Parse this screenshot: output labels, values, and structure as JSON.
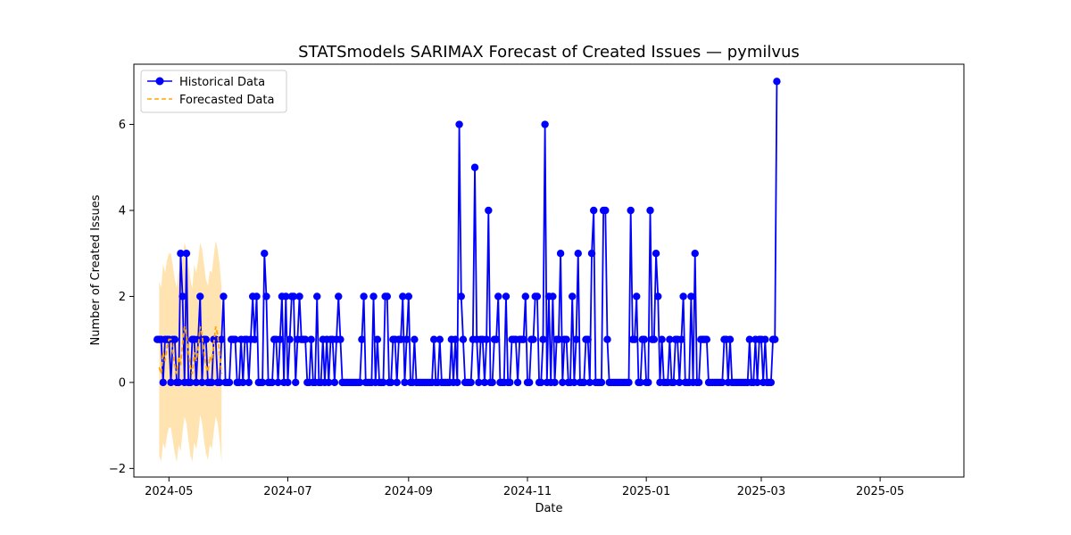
{
  "chart_data": {
    "type": "line",
    "title": "STATSmodels SARIMAX Forecast of Created Issues — pymilvus",
    "xlabel": "Date",
    "ylabel": "Number of Created Issues",
    "x_range": [
      "2024-04-13",
      "2025-06-13"
    ],
    "ylim": [
      -2.2,
      7.4
    ],
    "x_ticks": [
      "2024-05-01",
      "2024-07-01",
      "2024-09-01",
      "2024-11-01",
      "2025-01-01",
      "2025-03-01",
      "2025-05-01"
    ],
    "x_tick_labels": [
      "2024-05",
      "2024-07",
      "2024-09",
      "2024-11",
      "2025-01",
      "2025-03",
      "2025-05"
    ],
    "y_ticks": [
      -2,
      0,
      2,
      4,
      6
    ],
    "y_tick_labels": [
      "−2",
      "0",
      "2",
      "4",
      "6"
    ],
    "grid": false,
    "legend_position": "top-left",
    "colors": {
      "historical": "#0000ff",
      "forecast": "#ffa500",
      "confidence": "#ffa500"
    },
    "legend": {
      "historical": "Historical Data",
      "forecast": "Forecasted Data"
    },
    "historical": {
      "start_date": "2024-04-25",
      "values": [
        1,
        1,
        1,
        0,
        1,
        1,
        1,
        0,
        1,
        1,
        0,
        0,
        3,
        2,
        0,
        3,
        0,
        0,
        1,
        1,
        0,
        1,
        2,
        0,
        1,
        1,
        0,
        0,
        0,
        1,
        1,
        0,
        0,
        1,
        2,
        0,
        0,
        0,
        1,
        1,
        1,
        0,
        0,
        1,
        0,
        1,
        1,
        0,
        1,
        2,
        1,
        2,
        0,
        0,
        0,
        3,
        2,
        0,
        0,
        0,
        1,
        1,
        0,
        1,
        2,
        0,
        2,
        0,
        1,
        2,
        2,
        0,
        1,
        2,
        1,
        1,
        1,
        0,
        0,
        1,
        0,
        0,
        2,
        0,
        0,
        1,
        0,
        1,
        0,
        1,
        1,
        0,
        1,
        2,
        1,
        0,
        0,
        0,
        0,
        0,
        0,
        0,
        0,
        0,
        0,
        1,
        2,
        0,
        0,
        0,
        0,
        2,
        0,
        1,
        0,
        0,
        0,
        2,
        2,
        0,
        0,
        1,
        1,
        0,
        1,
        1,
        2,
        0,
        1,
        2,
        0,
        0,
        1,
        0,
        0,
        0,
        0,
        0,
        0,
        0,
        0,
        0,
        1,
        0,
        0,
        1,
        0,
        0,
        0,
        0,
        0,
        1,
        0,
        1,
        0,
        6,
        2,
        1,
        0,
        0,
        0,
        0,
        1,
        5,
        1,
        0,
        1,
        1,
        0,
        1,
        4,
        0,
        0,
        1,
        1,
        2,
        0,
        0,
        0,
        2,
        0,
        0,
        1,
        1,
        1,
        0,
        1,
        1,
        1,
        2,
        0,
        0,
        1,
        1,
        2,
        2,
        0,
        0,
        1,
        6,
        0,
        2,
        0,
        2,
        0,
        1,
        1,
        3,
        0,
        1,
        1,
        0,
        0,
        2,
        0,
        1,
        3,
        0,
        0,
        0,
        1,
        1,
        0,
        3,
        4,
        0,
        0,
        0,
        0,
        4,
        4,
        1,
        0,
        0,
        0,
        0,
        0,
        0,
        0,
        0,
        0,
        0,
        0,
        4,
        1,
        1,
        2,
        0,
        0,
        1,
        1,
        0,
        0,
        4,
        1,
        1,
        3,
        2,
        0,
        1,
        0,
        0,
        0,
        1,
        0,
        0,
        1,
        1,
        0,
        1,
        2,
        0,
        0,
        0,
        2,
        0,
        3,
        0,
        0,
        1,
        1,
        1,
        1,
        0,
        0,
        0,
        0,
        0,
        0,
        0,
        0,
        1,
        1,
        0,
        1,
        0,
        0,
        0,
        0,
        0,
        0,
        0,
        0,
        0,
        1,
        0,
        0,
        1,
        0,
        1,
        1,
        0,
        1,
        0,
        0,
        0,
        1,
        1,
        7
      ]
    },
    "forecast": {
      "start_date": "2024-04-26",
      "values": [
        0.35,
        0.2,
        0.7,
        0.5,
        0.8,
        1.0,
        1.0,
        0.7,
        0.4,
        0.2,
        0.6,
        0.4,
        0.9,
        1.3,
        1.1,
        0.7,
        0.35,
        0.2,
        0.7,
        0.5,
        0.8,
        1.3,
        1.1,
        0.7,
        0.4,
        0.25,
        0.6,
        0.5,
        0.9,
        1.3,
        1.1,
        0.7,
        0.2
      ],
      "lower": [
        -1.7,
        -1.85,
        -1.4,
        -1.55,
        -1.25,
        -1.05,
        -1.05,
        -1.35,
        -1.65,
        -1.85,
        -1.45,
        -1.6,
        -1.15,
        -0.8,
        -0.95,
        -1.35,
        -1.7,
        -1.85,
        -1.4,
        -1.55,
        -1.25,
        -0.75,
        -0.95,
        -1.35,
        -1.65,
        -1.8,
        -1.45,
        -1.55,
        -1.15,
        -0.8,
        -0.95,
        -1.35,
        -1.85
      ],
      "upper": [
        2.35,
        2.2,
        2.75,
        2.55,
        2.85,
        3.0,
        3.0,
        2.7,
        2.4,
        2.2,
        2.6,
        2.5,
        2.9,
        3.25,
        3.1,
        2.75,
        2.4,
        2.2,
        2.75,
        2.55,
        2.85,
        3.25,
        3.1,
        2.75,
        2.4,
        2.25,
        2.6,
        2.55,
        2.95,
        3.3,
        3.1,
        2.75,
        2.2
      ]
    }
  }
}
